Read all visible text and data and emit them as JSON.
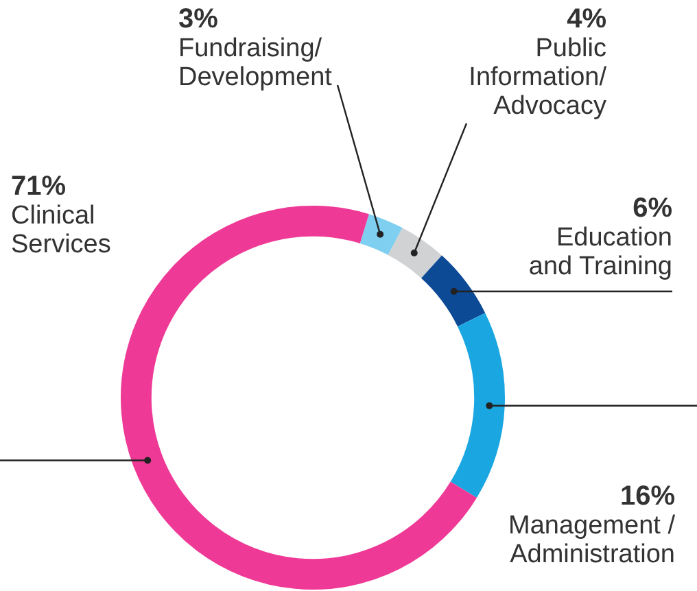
{
  "chart_data": {
    "type": "donut",
    "categories": [
      "Fundraising/\nDevelopment",
      "Public\nInformation/\nAdvocacy",
      "Education\nand Training",
      "Management /\nAdministration",
      "Clinical\nServices"
    ],
    "values": [
      3,
      4,
      6,
      16,
      71
    ],
    "value_labels": [
      "3%",
      "4%",
      "6%",
      "16%",
      "71%"
    ],
    "colors": [
      "#7fcff0",
      "#d0d2d3",
      "#0d4a96",
      "#1aa7e1",
      "#ee3a96"
    ],
    "legend": false
  }
}
